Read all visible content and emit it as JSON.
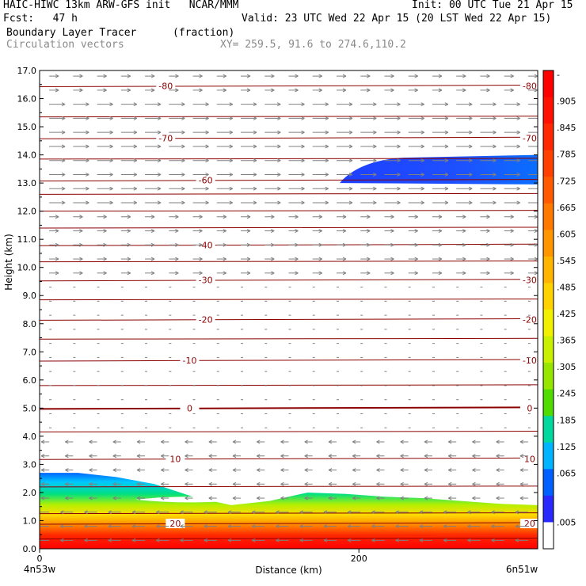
{
  "header": {
    "line1_left": "HAIC-HIWC 13km ARW-GFS init   NCAR/MMM",
    "line1_right": "Init: 00 UTC Tue 21 Apr 15",
    "line2_left": "Fcst:   47 h",
    "line2_right": "Valid: 23 UTC Wed 22 Apr 15 (20 LST Wed 22 Apr 15)",
    "field_name": "Boundary Layer Tracer",
    "field_units": "(fraction)",
    "vector_name": "Circulation vectors",
    "xy_range": "XY= 259.5, 91.6 to 274.6,110.2"
  },
  "chart_data": {
    "type": "heatmap",
    "title": "Boundary Layer Tracer",
    "units": "(fraction)",
    "xlabel": "Distance (km)",
    "ylabel": "Height (km)",
    "xlim": [
      0,
      312
    ],
    "ylim": [
      0,
      17
    ],
    "x_ticks": [
      0,
      200
    ],
    "x_endpoint_labels": [
      "4n53w",
      "6n51w"
    ],
    "y_ticks": [
      0,
      1,
      2,
      3,
      4,
      5,
      6,
      7,
      8,
      9,
      10,
      11,
      12,
      13,
      14,
      15,
      16,
      17
    ],
    "y_tick_labels": [
      "0.0",
      "1.0",
      "2.0",
      "3.0",
      "4.0",
      "5.0",
      "6.0",
      "7.0",
      "8.0",
      "9.0",
      "10.0",
      "11.0",
      "12.0",
      "13.0",
      "14.0",
      "15.0",
      "16.0",
      "17.0"
    ],
    "colorbar": {
      "labels": [
        "-",
        ".905",
        ".845",
        ".785",
        ".725",
        ".665",
        ".605",
        ".545",
        ".485",
        ".425",
        ".365",
        ".305",
        ".245",
        ".185",
        ".125",
        ".065",
        ".005"
      ],
      "colors": [
        "#ff0000",
        "#ff1000",
        "#ff2800",
        "#ff4000",
        "#ff5a00",
        "#ff7800",
        "#ff9600",
        "#ffb400",
        "#ffd200",
        "#f0f000",
        "#c8f000",
        "#96e600",
        "#50dc00",
        "#00d8a0",
        "#00b4ff",
        "#0060ff",
        "#2828ff",
        "#ffffff"
      ]
    },
    "tracer_regions": [
      {
        "name": "boundary layer",
        "x": [
          0,
          312
        ],
        "top_km": [
          2.7,
          2.7,
          2.55,
          2.3,
          1.85,
          1.55,
          1.7,
          2.0,
          1.95,
          1.85,
          1.8,
          1.7,
          1.6,
          1.55
        ]
      },
      {
        "name": "upper-level plume",
        "x": [
          188,
          312
        ],
        "bottom_km": 13.0,
        "top_km": 13.9
      }
    ],
    "temperature_contours": [
      {
        "label": "-80",
        "height_km": 16.45,
        "label_positions_km": [
          79,
          307
        ]
      },
      {
        "label": "-70",
        "height_km": 14.6,
        "label_positions_km": [
          79,
          307
        ]
      },
      {
        "label": "-60",
        "height_km": 13.1,
        "label_positions_km": [
          104
        ]
      },
      {
        "label": "-40",
        "height_km": 10.8,
        "label_positions_km": [
          104
        ]
      },
      {
        "label": "-30",
        "height_km": 9.55,
        "label_positions_km": [
          104,
          307
        ]
      },
      {
        "label": "-20",
        "height_km": 8.15,
        "label_positions_km": [
          104,
          307
        ]
      },
      {
        "label": "-10",
        "height_km": 6.7,
        "label_positions_km": [
          94,
          307
        ]
      },
      {
        "label": "0",
        "height_km": 5.0,
        "label_positions_km": [
          94,
          307
        ]
      },
      {
        "label": "10",
        "height_km": 3.2,
        "label_positions_km": [
          85,
          307
        ]
      },
      {
        "label": "20",
        "height_km": 0.9,
        "label_positions_km": [
          85,
          307
        ]
      }
    ],
    "unlabeled_contour_heights_km": [
      15.35,
      13.85,
      12.6,
      12.0,
      11.4,
      10.2,
      8.85,
      7.45,
      5.8,
      4.15,
      2.2,
      1.25,
      0.35
    ],
    "vectors": {
      "direction_by_height": [
        {
          "from_km": 0,
          "to_km": 4.2,
          "direction": "westward"
        },
        {
          "from_km": 4.2,
          "to_km": 9.5,
          "direction": "weak/variable"
        },
        {
          "from_km": 9.5,
          "to_km": 17,
          "direction": "eastward"
        }
      ]
    }
  }
}
